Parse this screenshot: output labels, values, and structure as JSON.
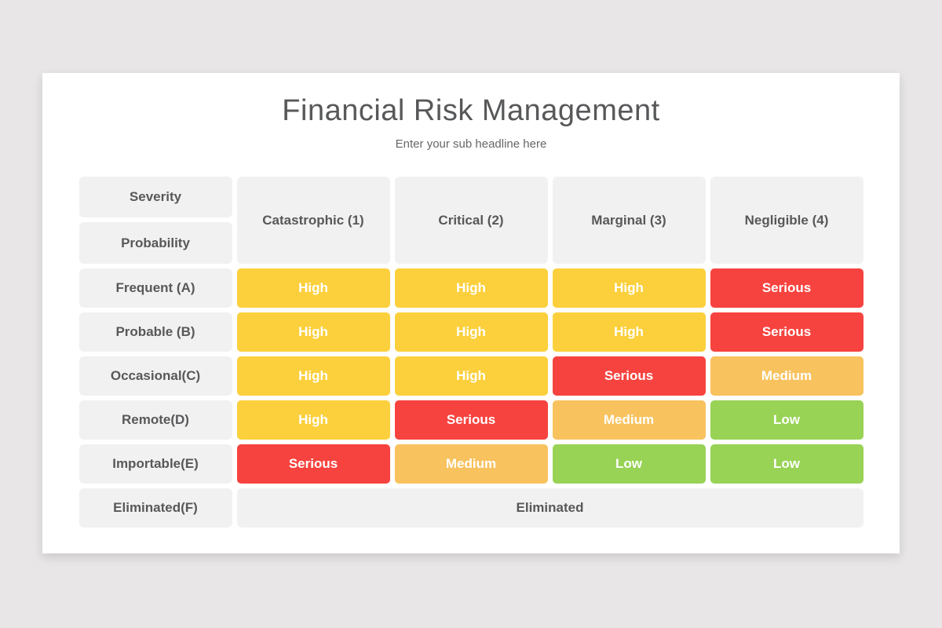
{
  "page": {
    "title": "Financial Risk Management",
    "subtitle": "Enter your sub headline here"
  },
  "matrix": {
    "severity_label": "Severity",
    "probability_label": "Probability",
    "columns": [
      "Catastrophic (1)",
      "Critical (2)",
      "Marginal (3)",
      "Negligible (4)"
    ],
    "rows": [
      {
        "label": "Frequent (A)",
        "cells": [
          "High",
          "High",
          "High",
          "Serious"
        ]
      },
      {
        "label": "Probable (B)",
        "cells": [
          "High",
          "High",
          "High",
          "Serious"
        ]
      },
      {
        "label": "Occasional(C)",
        "cells": [
          "High",
          "High",
          "Serious",
          "Medium"
        ]
      },
      {
        "label": "Remote(D)",
        "cells": [
          "High",
          "Serious",
          "Medium",
          "Low"
        ]
      },
      {
        "label": "Importable(E)",
        "cells": [
          "Serious",
          "Medium",
          "Low",
          "Low"
        ]
      }
    ],
    "eliminated_row": {
      "label": "Eliminated(F)",
      "text": "Eliminated"
    },
    "level_colors": {
      "High": "#FBD03C",
      "Serious": "#F6433F",
      "Medium": "#F8C25E",
      "Low": "#98D356"
    },
    "label_cell_background": "#F1F1F1",
    "label_text_color": "#58585A"
  },
  "theme": {
    "page_background": "#E8E6E7",
    "card_background": "#FFFFFF"
  }
}
